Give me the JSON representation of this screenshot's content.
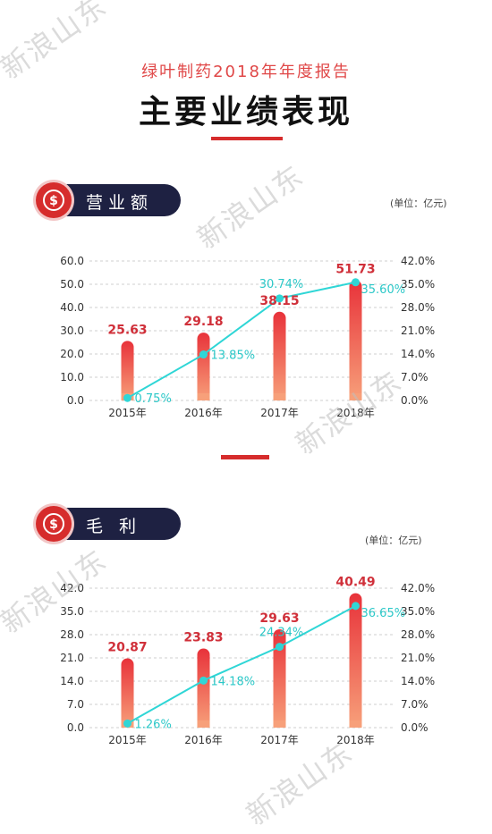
{
  "header": {
    "subtitle": "绿叶制药2018年年度报告",
    "title": "主要业绩表现"
  },
  "colors": {
    "bar_top": "#e8323a",
    "bar_bottom": "#f7a07a",
    "line": "#2fd6d6",
    "accent_red": "#d62c2c",
    "pill_dark": "#1e2142"
  },
  "sections": [
    {
      "label": "营业额",
      "unit": "(单位：亿元)",
      "icon": "dollar-circle-icon"
    },
    {
      "label": "毛  利",
      "unit": "(单位：亿元)",
      "icon": "dollar-circle-icon"
    }
  ],
  "watermark": "新浪山东",
  "chart_data": [
    {
      "type": "bar",
      "categories": [
        "2015年",
        "2016年",
        "2017年",
        "2018年"
      ],
      "series": [
        {
          "type": "bar",
          "values": [
            25.63,
            29.18,
            38.15,
            51.73
          ],
          "labels": [
            "25.63",
            "29.18",
            "38.15",
            "51.73"
          ]
        },
        {
          "type": "line",
          "axis": "right",
          "values": [
            0.75,
            13.85,
            30.74,
            35.6
          ],
          "labels": [
            "0.75%",
            "13.85%",
            "30.74%",
            "35.60%"
          ]
        }
      ],
      "ylim_left": [
        0,
        60
      ],
      "yticks_left": [
        "0.0",
        "10.0",
        "20.0",
        "30.0",
        "40.0",
        "50.0",
        "60.0"
      ],
      "ylim_right": [
        0,
        42
      ],
      "yticks_right": [
        "0.0%",
        "7.0%",
        "14.0%",
        "21.0%",
        "28.0%",
        "35.0%",
        "42.0%"
      ],
      "grid": "dashed-horizontal"
    },
    {
      "type": "bar",
      "categories": [
        "2015年",
        "2016年",
        "2017年",
        "2018年"
      ],
      "series": [
        {
          "type": "bar",
          "values": [
            20.87,
            23.83,
            29.63,
            40.49
          ],
          "labels": [
            "20.87",
            "23.83",
            "29.63",
            "40.49"
          ]
        },
        {
          "type": "line",
          "axis": "right",
          "values": [
            1.26,
            14.18,
            24.34,
            36.65
          ],
          "labels": [
            "1.26%",
            "14.18%",
            "24.34%",
            "36.65%"
          ]
        }
      ],
      "ylim_left": [
        0,
        42
      ],
      "yticks_left": [
        "0.0",
        "7.0",
        "14.0",
        "21.0",
        "28.0",
        "35.0",
        "42.0"
      ],
      "ylim_right": [
        0,
        42
      ],
      "yticks_right": [
        "0.0%",
        "7.0%",
        "14.0%",
        "21.0%",
        "28.0%",
        "35.0%",
        "42.0%"
      ],
      "grid": "dashed-horizontal"
    }
  ]
}
